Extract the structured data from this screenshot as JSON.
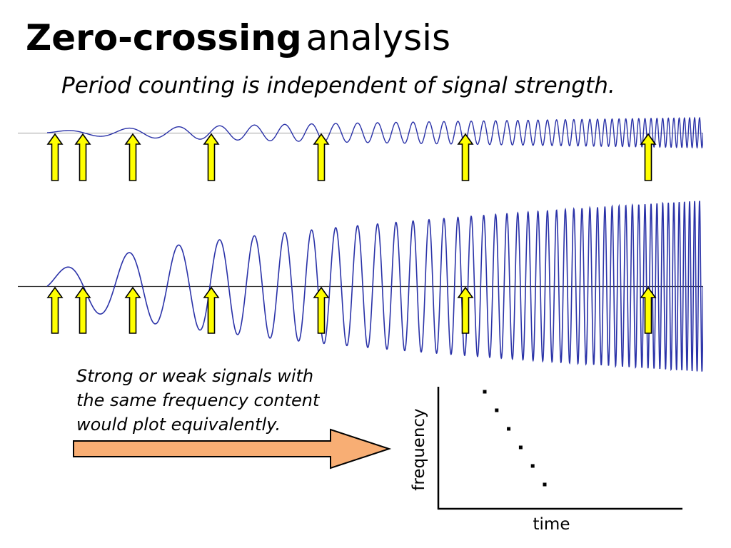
{
  "slide": {
    "title_bold": "Zero-crossing",
    "title_rest": "analysis",
    "subtitle": "Period counting is independent of signal strength."
  },
  "signals": [
    {
      "name": "weak",
      "amplitude": "small"
    },
    {
      "name": "strong",
      "amplitude": "large"
    }
  ],
  "colors": {
    "wave": "#2a32a8",
    "axis_line": "#999999",
    "marker_arrow": "#ffff00",
    "big_arrow": "#f8ae74"
  },
  "caption": {
    "lines": [
      "Strong or weak signals with",
      "the same frequency content",
      "would plot equivalently."
    ]
  },
  "chart_data": {
    "type": "scatter",
    "xlabel": "time",
    "ylabel": "frequency",
    "points": [
      {
        "x": 1,
        "y": 6
      },
      {
        "x": 2,
        "y": 5
      },
      {
        "x": 3,
        "y": 4
      },
      {
        "x": 4,
        "y": 3
      },
      {
        "x": 5,
        "y": 2
      },
      {
        "x": 6,
        "y": 1
      }
    ]
  }
}
